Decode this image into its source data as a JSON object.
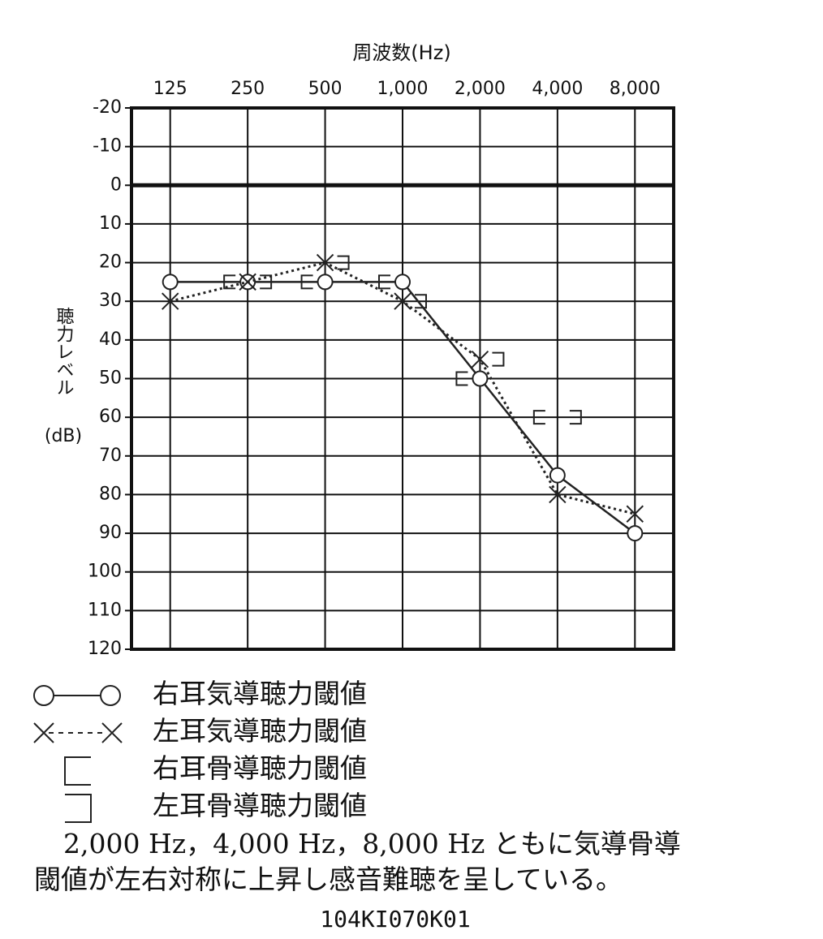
{
  "chart_data": {
    "type": "line",
    "x_label": "周波数(Hz)",
    "y_label": "聴力レベル",
    "y_label_unit": "(dB)",
    "categories": [
      "125",
      "250",
      "500",
      "1,000",
      "2,000",
      "4,000",
      "8,000"
    ],
    "ylim": [
      -20,
      120
    ],
    "y_reversed": true,
    "yticks": [
      -20,
      -10,
      0,
      10,
      20,
      30,
      40,
      50,
      60,
      70,
      80,
      90,
      100,
      110,
      120
    ],
    "grid": true,
    "series": [
      {
        "name": "右耳気導聴力閾値",
        "color": "#222222",
        "marker": "circle",
        "line": "solid",
        "values": [
          25,
          25,
          25,
          25,
          50,
          75,
          90
        ]
      },
      {
        "name": "左耳気導聴力閾値",
        "color": "#222222",
        "marker": "cross",
        "line": "dotted",
        "values": [
          30,
          25,
          20,
          30,
          45,
          80,
          85
        ]
      },
      {
        "name": "右耳骨導聴力閾値",
        "color": "#222222",
        "marker": "bracket-left",
        "line": "none",
        "values": [
          null,
          25,
          25,
          25,
          50,
          60,
          null
        ]
      },
      {
        "name": "左耳骨導聴力閾値",
        "color": "#222222",
        "marker": "bracket-right",
        "line": "none",
        "values": [
          null,
          25,
          20,
          30,
          45,
          60,
          null
        ]
      }
    ]
  },
  "caption": [
    "2,000 Hz，4,000 Hz，8,000 Hz ともに気導骨導",
    "閾値が左右対称に上昇し感音難聴を呈している。"
  ],
  "footer": "104KI070K01"
}
